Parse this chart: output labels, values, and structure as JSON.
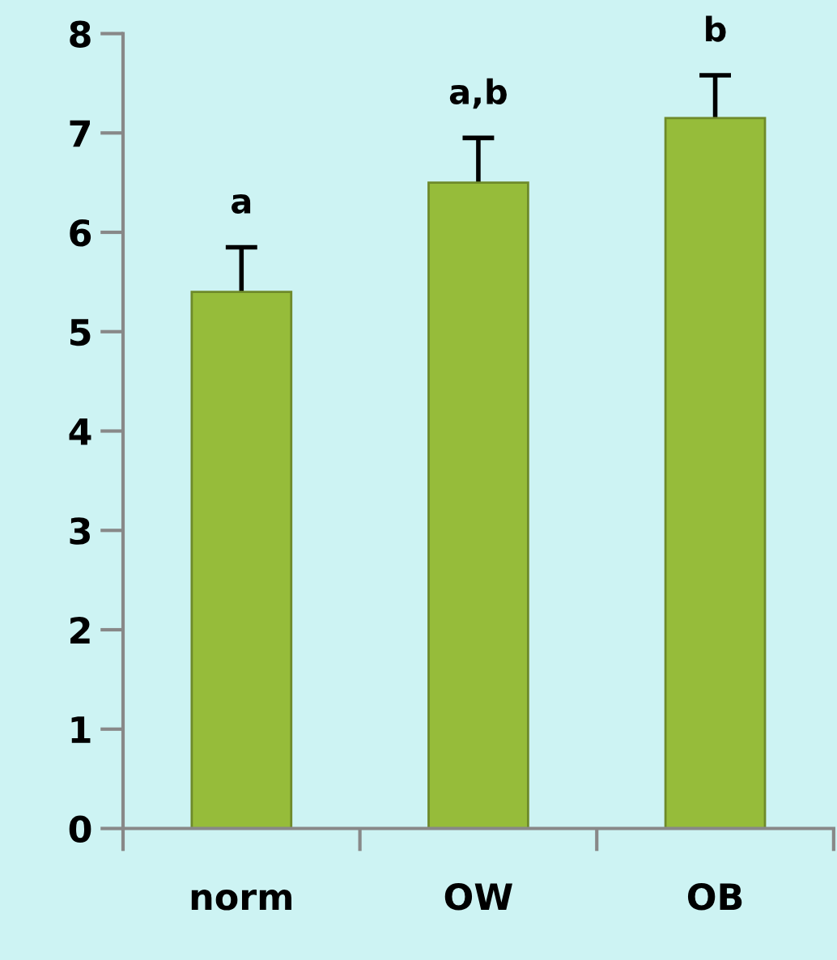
{
  "chart_data": {
    "type": "bar",
    "categories": [
      "norm",
      "OW",
      "OB"
    ],
    "values": [
      5.4,
      6.5,
      7.15
    ],
    "errors": [
      0.45,
      0.45,
      0.43
    ],
    "color": "#96bc3a",
    "ylim": [
      0,
      8
    ],
    "yticks": [
      0,
      1,
      2,
      3,
      4,
      5,
      6,
      7,
      8
    ],
    "grid": false,
    "legend": false,
    "annotations": [
      "a",
      "a,b",
      "b"
    ]
  }
}
